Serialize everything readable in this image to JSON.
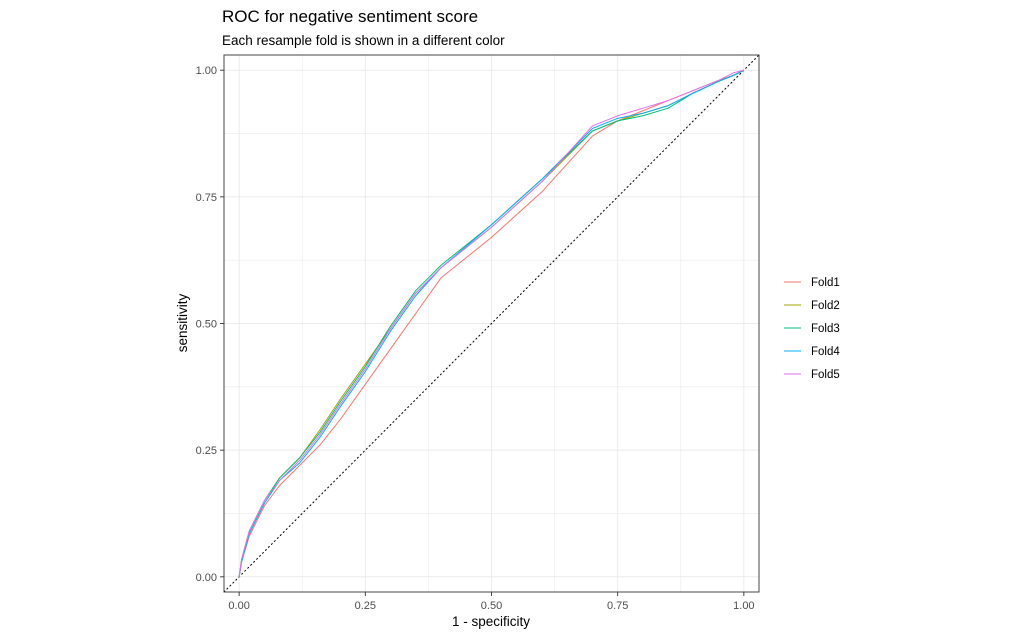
{
  "chart_data": {
    "type": "line",
    "title": "ROC for negative sentiment score",
    "subtitle": "Each resample fold is shown in a different color",
    "xlabel": "1 - specificity",
    "ylabel": "sensitivity",
    "xlim": [
      -0.03,
      1.03
    ],
    "ylim": [
      -0.03,
      1.03
    ],
    "x_ticks": [
      0.0,
      0.25,
      0.5,
      0.75,
      1.0
    ],
    "x_tick_labels": [
      "0.00",
      "0.25",
      "0.50",
      "0.75",
      "1.00"
    ],
    "y_ticks": [
      0.0,
      0.25,
      0.5,
      0.75,
      1.0
    ],
    "y_tick_labels": [
      "0.00",
      "0.25",
      "0.50",
      "0.75",
      "1.00"
    ],
    "grid": true,
    "background": "#ffffff",
    "grid_color": "#ebebeb",
    "panel_border": "#333333",
    "legend_position": "right",
    "reference_line": {
      "style": "dotted",
      "from": [
        0,
        0
      ],
      "to": [
        1,
        1
      ],
      "color": "#000000"
    },
    "series": [
      {
        "name": "Fold1",
        "color": "#F8766D",
        "x": [
          0,
          0.005,
          0.02,
          0.05,
          0.08,
          0.12,
          0.16,
          0.2,
          0.25,
          0.3,
          0.35,
          0.4,
          0.5,
          0.6,
          0.7,
          0.75,
          0.8,
          0.85,
          0.9,
          0.95,
          0.98,
          1.0
        ],
        "y": [
          0,
          0.03,
          0.08,
          0.14,
          0.18,
          0.22,
          0.26,
          0.31,
          0.38,
          0.45,
          0.52,
          0.59,
          0.67,
          0.76,
          0.87,
          0.9,
          0.92,
          0.94,
          0.96,
          0.98,
          0.99,
          1.0
        ]
      },
      {
        "name": "Fold2",
        "color": "#A3A500",
        "x": [
          0,
          0.005,
          0.02,
          0.05,
          0.08,
          0.12,
          0.16,
          0.2,
          0.25,
          0.3,
          0.35,
          0.4,
          0.5,
          0.6,
          0.7,
          0.75,
          0.8,
          0.85,
          0.9,
          0.95,
          0.98,
          1.0
        ],
        "y": [
          0,
          0.035,
          0.09,
          0.15,
          0.195,
          0.235,
          0.29,
          0.35,
          0.42,
          0.49,
          0.56,
          0.61,
          0.69,
          0.78,
          0.88,
          0.9,
          0.915,
          0.93,
          0.955,
          0.978,
          0.99,
          1.0
        ]
      },
      {
        "name": "Fold3",
        "color": "#00BF7D",
        "x": [
          0,
          0.005,
          0.02,
          0.05,
          0.08,
          0.12,
          0.16,
          0.2,
          0.25,
          0.3,
          0.35,
          0.4,
          0.5,
          0.6,
          0.7,
          0.75,
          0.8,
          0.85,
          0.9,
          0.95,
          0.98,
          1.0
        ],
        "y": [
          0,
          0.035,
          0.09,
          0.15,
          0.195,
          0.235,
          0.285,
          0.345,
          0.415,
          0.495,
          0.565,
          0.615,
          0.695,
          0.785,
          0.88,
          0.9,
          0.91,
          0.925,
          0.955,
          0.978,
          0.99,
          1.0
        ]
      },
      {
        "name": "Fold4",
        "color": "#00B0F6",
        "x": [
          0,
          0.005,
          0.02,
          0.05,
          0.08,
          0.12,
          0.16,
          0.2,
          0.25,
          0.3,
          0.35,
          0.4,
          0.5,
          0.6,
          0.7,
          0.75,
          0.8,
          0.85,
          0.9,
          0.95,
          0.98,
          1.0
        ],
        "y": [
          0,
          0.03,
          0.085,
          0.145,
          0.19,
          0.225,
          0.275,
          0.335,
          0.405,
          0.485,
          0.555,
          0.61,
          0.695,
          0.785,
          0.885,
          0.905,
          0.915,
          0.93,
          0.955,
          0.978,
          0.99,
          1.0
        ]
      },
      {
        "name": "Fold5",
        "color": "#E76BF3",
        "x": [
          0,
          0.005,
          0.02,
          0.05,
          0.08,
          0.12,
          0.16,
          0.2,
          0.25,
          0.3,
          0.35,
          0.4,
          0.5,
          0.6,
          0.7,
          0.75,
          0.8,
          0.85,
          0.9,
          0.95,
          0.98,
          1.0
        ],
        "y": [
          0,
          0.035,
          0.09,
          0.15,
          0.19,
          0.23,
          0.28,
          0.34,
          0.41,
          0.49,
          0.56,
          0.61,
          0.69,
          0.78,
          0.89,
          0.91,
          0.925,
          0.94,
          0.96,
          0.98,
          0.995,
          1.0
        ]
      }
    ]
  }
}
